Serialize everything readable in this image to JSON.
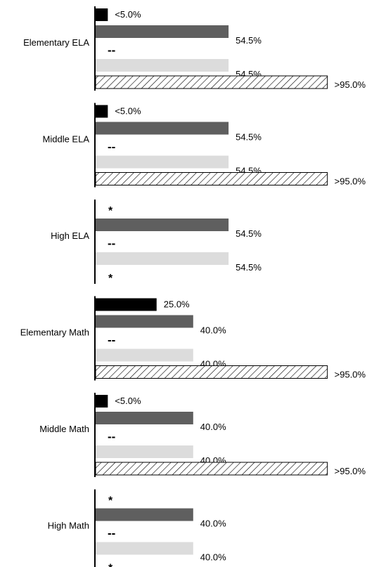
{
  "chart_data": {
    "type": "bar",
    "orientation": "horizontal",
    "xlim": [
      0,
      100
    ],
    "grid": false,
    "legend": "none",
    "colors": {
      "bar1": "#000000",
      "bar2": "#5f5f5f",
      "bar3": "#000000",
      "bar4": "#dcdcdc",
      "bar5_hatch": "#000000"
    },
    "series_styles": [
      "solid-black",
      "solid-dark-gray",
      "dash-marker",
      "solid-light-gray",
      "hatched"
    ],
    "groups": [
      {
        "category": "Elementary ELA",
        "bars": [
          {
            "value": 5.0,
            "label": "<5.0%"
          },
          {
            "value": 54.5,
            "label": "54.5%"
          },
          {
            "value": null,
            "label": "--"
          },
          {
            "value": 54.5,
            "label": "54.5%"
          },
          {
            "value": 95.0,
            "label": ">95.0%"
          }
        ]
      },
      {
        "category": "Middle ELA",
        "bars": [
          {
            "value": 5.0,
            "label": "<5.0%"
          },
          {
            "value": 54.5,
            "label": "54.5%"
          },
          {
            "value": null,
            "label": "--"
          },
          {
            "value": 54.5,
            "label": "54.5%"
          },
          {
            "value": 95.0,
            "label": ">95.0%"
          }
        ]
      },
      {
        "category": "High ELA",
        "bars": [
          {
            "value": null,
            "label": "*"
          },
          {
            "value": 54.5,
            "label": "54.5%"
          },
          {
            "value": null,
            "label": "--"
          },
          {
            "value": 54.5,
            "label": "54.5%"
          },
          {
            "value": null,
            "label": "*"
          }
        ]
      },
      {
        "category": "Elementary Math",
        "bars": [
          {
            "value": 25.0,
            "label": "25.0%"
          },
          {
            "value": 40.0,
            "label": "40.0%"
          },
          {
            "value": null,
            "label": "--"
          },
          {
            "value": 40.0,
            "label": "40.0%"
          },
          {
            "value": 95.0,
            "label": ">95.0%"
          }
        ]
      },
      {
        "category": "Middle Math",
        "bars": [
          {
            "value": 5.0,
            "label": "<5.0%"
          },
          {
            "value": 40.0,
            "label": "40.0%"
          },
          {
            "value": null,
            "label": "--"
          },
          {
            "value": 40.0,
            "label": "40.0%"
          },
          {
            "value": 95.0,
            "label": ">95.0%"
          }
        ]
      },
      {
        "category": "High Math",
        "bars": [
          {
            "value": null,
            "label": "*"
          },
          {
            "value": 40.0,
            "label": "40.0%"
          },
          {
            "value": null,
            "label": "--"
          },
          {
            "value": 40.0,
            "label": "40.0%"
          },
          {
            "value": null,
            "label": "*"
          }
        ]
      }
    ]
  }
}
